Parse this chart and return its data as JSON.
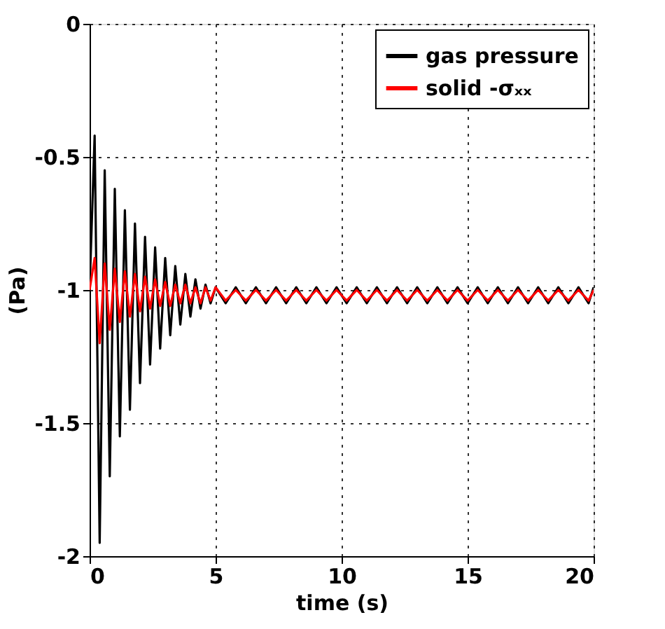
{
  "chart_data": {
    "type": "line",
    "xlabel": "time (s)",
    "ylabel": "(Pa)",
    "x": [
      0,
      0.2,
      0.4,
      0.6,
      0.8,
      1.0,
      1.2,
      1.4,
      1.6,
      1.8,
      2.0,
      2.2,
      2.4,
      2.6,
      2.8,
      3.0,
      3.2,
      3.4,
      3.6,
      3.8,
      4.0,
      4.2,
      4.4,
      4.6,
      4.8,
      5.0,
      5.4,
      5.8,
      6.2,
      6.6,
      7.0,
      7.4,
      7.8,
      8.2,
      8.6,
      9.0,
      9.4,
      9.8,
      10.2,
      10.6,
      11.0,
      11.4,
      11.8,
      12.2,
      12.6,
      13.0,
      13.4,
      13.8,
      14.2,
      14.6,
      15.0,
      15.4,
      15.8,
      16.2,
      16.6,
      17.0,
      17.4,
      17.8,
      18.2,
      18.6,
      19.0,
      19.4,
      19.8,
      20.0
    ],
    "series": [
      {
        "name": "gas pressure",
        "color": "#000000",
        "values": [
          -1,
          -0.42,
          -1.95,
          -0.55,
          -1.7,
          -0.62,
          -1.55,
          -0.7,
          -1.45,
          -0.75,
          -1.35,
          -0.8,
          -1.28,
          -0.84,
          -1.22,
          -0.88,
          -1.17,
          -0.91,
          -1.13,
          -0.94,
          -1.1,
          -0.96,
          -1.07,
          -0.98,
          -1.05,
          -0.99,
          -1.05,
          -0.99,
          -1.05,
          -0.99,
          -1.05,
          -0.99,
          -1.05,
          -0.99,
          -1.05,
          -0.99,
          -1.05,
          -0.99,
          -1.05,
          -0.99,
          -1.05,
          -0.99,
          -1.05,
          -0.99,
          -1.05,
          -0.99,
          -1.05,
          -0.99,
          -1.05,
          -0.99,
          -1.05,
          -0.99,
          -1.05,
          -0.99,
          -1.05,
          -0.99,
          -1.05,
          -0.99,
          -1.05,
          -0.99,
          -1.05,
          -0.99,
          -1.05,
          -0.99
        ]
      },
      {
        "name": "solid -σₓₓ",
        "color": "#ff0000",
        "values": [
          -1,
          -0.88,
          -1.2,
          -0.9,
          -1.15,
          -0.92,
          -1.12,
          -0.93,
          -1.1,
          -0.94,
          -1.08,
          -0.95,
          -1.07,
          -0.96,
          -1.06,
          -0.97,
          -1.06,
          -0.98,
          -1.05,
          -0.98,
          -1.05,
          -0.99,
          -1.05,
          -0.99,
          -1.04,
          -0.99,
          -1.04,
          -1.0,
          -1.04,
          -1.0,
          -1.04,
          -1.0,
          -1.04,
          -1.0,
          -1.04,
          -1.0,
          -1.04,
          -1.0,
          -1.04,
          -1.0,
          -1.04,
          -1.0,
          -1.04,
          -1.0,
          -1.04,
          -1.0,
          -1.04,
          -1.0,
          -1.04,
          -1.0,
          -1.04,
          -1.0,
          -1.04,
          -1.0,
          -1.04,
          -1.0,
          -1.04,
          -1.0,
          -1.04,
          -1.0,
          -1.04,
          -1.0,
          -1.04,
          -1.0
        ]
      }
    ],
    "xlim": [
      0,
      20
    ],
    "xticks": [
      0,
      5,
      10,
      15,
      20
    ],
    "ylim": [
      -2,
      0
    ],
    "yticks": [
      -2,
      -1.5,
      -1,
      -0.5,
      0
    ],
    "grid": true,
    "legend": "top right",
    "marker": "none",
    "line_style": "solid"
  }
}
